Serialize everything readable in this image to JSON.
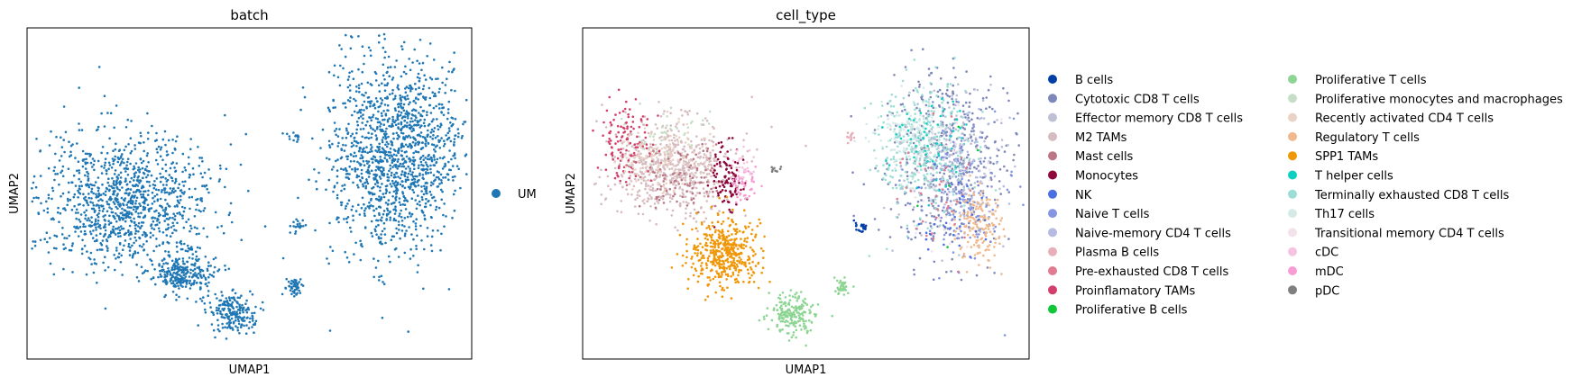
{
  "chart_data": [
    {
      "type": "scatter",
      "title": "batch",
      "xlabel": "UMAP1",
      "ylabel": "UMAP2",
      "grid": false,
      "ticks": false,
      "legend_placement": "right",
      "series": [
        {
          "name": "UM",
          "color": "#1f77b4"
        }
      ],
      "clusters": [
        {
          "series": "UM",
          "cx": 0.22,
          "cy": 0.52,
          "rx": 0.2,
          "ry": 0.2,
          "n": 1100
        },
        {
          "series": "UM",
          "cx": 0.35,
          "cy": 0.74,
          "rx": 0.07,
          "ry": 0.06,
          "n": 260
        },
        {
          "series": "UM",
          "cx": 0.46,
          "cy": 0.86,
          "rx": 0.05,
          "ry": 0.06,
          "n": 200
        },
        {
          "series": "UM",
          "cx": 0.6,
          "cy": 0.78,
          "rx": 0.02,
          "ry": 0.03,
          "n": 50
        },
        {
          "series": "UM",
          "cx": 0.61,
          "cy": 0.6,
          "rx": 0.015,
          "ry": 0.02,
          "n": 20
        },
        {
          "series": "UM",
          "cx": 0.6,
          "cy": 0.33,
          "rx": 0.015,
          "ry": 0.015,
          "n": 15
        },
        {
          "series": "UM",
          "cx": 0.83,
          "cy": 0.38,
          "rx": 0.15,
          "ry": 0.3,
          "n": 1400
        }
      ]
    },
    {
      "type": "scatter",
      "title": "cell_type",
      "xlabel": "UMAP1",
      "ylabel": "UMAP2",
      "grid": false,
      "ticks": false,
      "legend_placement": "right",
      "series": [
        {
          "name": "B cells",
          "color": "#023fa5"
        },
        {
          "name": "Cytotoxic CD8 T cells",
          "color": "#7d87b9"
        },
        {
          "name": "Effector memory CD8 T cells",
          "color": "#bec1d4"
        },
        {
          "name": "M2 TAMs",
          "color": "#d6bcc0"
        },
        {
          "name": "Mast cells",
          "color": "#bb7784"
        },
        {
          "name": "Monocytes",
          "color": "#8e063b"
        },
        {
          "name": "NK",
          "color": "#4a6fe3"
        },
        {
          "name": "Naive T cells",
          "color": "#8595e1"
        },
        {
          "name": "Naive-memory CD4 T cells",
          "color": "#b5bbe3"
        },
        {
          "name": "Plasma B cells",
          "color": "#e6afb9"
        },
        {
          "name": "Pre-exhausted CD8 T cells",
          "color": "#e07b91"
        },
        {
          "name": "Proinflamatory TAMs",
          "color": "#d33f6a"
        },
        {
          "name": "Proliferative B cells",
          "color": "#11c638"
        },
        {
          "name": "Proliferative T cells",
          "color": "#8dd593"
        },
        {
          "name": "Proliferative monocytes and macrophages",
          "color": "#c6dec7"
        },
        {
          "name": "Recently activated CD4 T cells",
          "color": "#ead3c6"
        },
        {
          "name": "Regulatory T cells",
          "color": "#f0b98d"
        },
        {
          "name": "SPP1 TAMs",
          "color": "#ef9708"
        },
        {
          "name": "T helper cells",
          "color": "#0fcfc0"
        },
        {
          "name": "Terminally exhausted CD8 T cells",
          "color": "#9cded6"
        },
        {
          "name": "Th17 cells",
          "color": "#d5eae7"
        },
        {
          "name": "Transitional memory CD4 T cells",
          "color": "#f3e1eb"
        },
        {
          "name": "cDC",
          "color": "#f6c4e1"
        },
        {
          "name": "mDC",
          "color": "#f79cd4"
        },
        {
          "name": "pDC",
          "color": "#7f7f7f"
        }
      ],
      "clusters": [
        {
          "series": "M2 TAMs",
          "cx": 0.2,
          "cy": 0.42,
          "rx": 0.14,
          "ry": 0.14,
          "n": 600
        },
        {
          "series": "Proinflamatory TAMs",
          "cx": 0.1,
          "cy": 0.35,
          "rx": 0.06,
          "ry": 0.12,
          "n": 120
        },
        {
          "series": "Recently activated CD4 T cells",
          "cx": 0.18,
          "cy": 0.4,
          "rx": 0.1,
          "ry": 0.1,
          "n": 150
        },
        {
          "series": "Mast cells",
          "cx": 0.22,
          "cy": 0.46,
          "rx": 0.1,
          "ry": 0.1,
          "n": 100
        },
        {
          "series": "Monocytes",
          "cx": 0.32,
          "cy": 0.45,
          "rx": 0.04,
          "ry": 0.1,
          "n": 100
        },
        {
          "series": "Proliferative monocytes and macrophages",
          "cx": 0.18,
          "cy": 0.3,
          "rx": 0.1,
          "ry": 0.08,
          "n": 40
        },
        {
          "series": "SPP1 TAMs",
          "cx": 0.32,
          "cy": 0.68,
          "rx": 0.08,
          "ry": 0.1,
          "n": 450
        },
        {
          "series": "mDC",
          "cx": 0.36,
          "cy": 0.48,
          "rx": 0.03,
          "ry": 0.05,
          "n": 40
        },
        {
          "series": "cDC",
          "cx": 0.36,
          "cy": 0.42,
          "rx": 0.03,
          "ry": 0.05,
          "n": 25
        },
        {
          "series": "Proliferative T cells",
          "cx": 0.47,
          "cy": 0.86,
          "rx": 0.05,
          "ry": 0.06,
          "n": 200
        },
        {
          "series": "Proliferative T cells",
          "cx": 0.58,
          "cy": 0.78,
          "rx": 0.015,
          "ry": 0.03,
          "n": 40
        },
        {
          "series": "B cells",
          "cx": 0.62,
          "cy": 0.6,
          "rx": 0.015,
          "ry": 0.02,
          "n": 20
        },
        {
          "series": "Plasma B cells",
          "cx": 0.6,
          "cy": 0.33,
          "rx": 0.015,
          "ry": 0.015,
          "n": 12
        },
        {
          "series": "pDC",
          "cx": 0.43,
          "cy": 0.43,
          "rx": 0.012,
          "ry": 0.01,
          "n": 10
        },
        {
          "series": "Cytotoxic CD8 T cells",
          "cx": 0.82,
          "cy": 0.4,
          "rx": 0.14,
          "ry": 0.28,
          "n": 450
        },
        {
          "series": "Terminally exhausted CD8 T cells",
          "cx": 0.76,
          "cy": 0.37,
          "rx": 0.1,
          "ry": 0.2,
          "n": 350
        },
        {
          "series": "Th17 cells",
          "cx": 0.73,
          "cy": 0.32,
          "rx": 0.08,
          "ry": 0.12,
          "n": 150
        },
        {
          "series": "Naive T cells",
          "cx": 0.85,
          "cy": 0.5,
          "rx": 0.1,
          "ry": 0.2,
          "n": 150
        },
        {
          "series": "Effector memory CD8 T cells",
          "cx": 0.82,
          "cy": 0.42,
          "rx": 0.12,
          "ry": 0.22,
          "n": 150
        },
        {
          "series": "Regulatory T cells",
          "cx": 0.89,
          "cy": 0.6,
          "rx": 0.05,
          "ry": 0.12,
          "n": 160
        },
        {
          "series": "T helper cells",
          "cx": 0.78,
          "cy": 0.35,
          "rx": 0.08,
          "ry": 0.15,
          "n": 60
        },
        {
          "series": "Transitional memory CD4 T cells",
          "cx": 0.82,
          "cy": 0.45,
          "rx": 0.1,
          "ry": 0.2,
          "n": 60
        },
        {
          "series": "Naive-memory CD4 T cells",
          "cx": 0.86,
          "cy": 0.4,
          "rx": 0.1,
          "ry": 0.2,
          "n": 60
        },
        {
          "series": "Pre-exhausted CD8 T cells",
          "cx": 0.8,
          "cy": 0.5,
          "rx": 0.1,
          "ry": 0.2,
          "n": 40
        },
        {
          "series": "NK",
          "cx": 0.84,
          "cy": 0.55,
          "rx": 0.08,
          "ry": 0.15,
          "n": 30
        },
        {
          "series": "Proliferative B cells",
          "cx": 0.83,
          "cy": 0.48,
          "rx": 0.1,
          "ry": 0.2,
          "n": 5
        }
      ]
    }
  ]
}
